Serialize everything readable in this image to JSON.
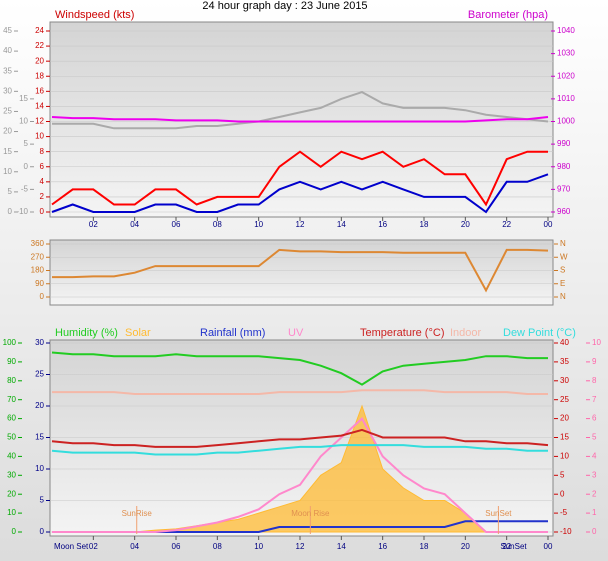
{
  "chart_data": [
    {
      "type": "line",
      "title": "24 hour graph day : 23 June 2015",
      "ylabel": "Windspeed (kts)",
      "y2label": "Barometer (hpa)",
      "x": [
        0,
        1,
        2,
        3,
        4,
        5,
        6,
        7,
        8,
        9,
        10,
        11,
        12,
        13,
        14,
        15,
        16,
        17,
        18,
        19,
        20,
        21,
        22,
        23,
        24
      ],
      "xlim": [
        0,
        24
      ],
      "xticks": [
        {
          "value": 2,
          "label": "02"
        },
        {
          "value": 4,
          "label": "04"
        },
        {
          "value": 6,
          "label": "06"
        },
        {
          "value": 8,
          "label": "08"
        },
        10,
        12,
        14,
        16,
        18,
        20,
        22,
        {
          "value": 24,
          "label": "00"
        }
      ],
      "ylim": [
        0,
        24
      ],
      "yticks": [
        0,
        2,
        4,
        6,
        8,
        10,
        12,
        14,
        16,
        18,
        20,
        22,
        24
      ],
      "y2lim": [
        960,
        1040
      ],
      "y2ticks": [
        960,
        970,
        980,
        990,
        1000,
        1010,
        1020,
        1030,
        1040
      ],
      "y3lim": [
        -10,
        30
      ],
      "y3ticks": [
        -10,
        -5,
        0,
        5,
        10,
        15
      ],
      "y4lim": [
        0,
        45
      ],
      "y4ticks": [
        0,
        5,
        10,
        15,
        20,
        25,
        30,
        35,
        40,
        45
      ],
      "axis_colors": {
        "y": "#cc0000",
        "y2": "#cc00cc",
        "y3": "#999999",
        "y4": "#999999"
      },
      "grid": true,
      "series": [
        {
          "color": "#aaaaaa",
          "axis": "y3",
          "values": [
            9.5,
            9.5,
            9.5,
            8.5,
            8.5,
            8.5,
            8.5,
            9,
            9,
            9.5,
            10,
            11,
            12,
            13,
            15,
            16.5,
            14,
            13,
            13,
            13,
            12.5,
            11.5,
            11,
            10.5,
            10
          ]
        },
        {
          "color": "#ee00ee",
          "axis": "y2",
          "values": [
            1002,
            1001.5,
            1001.5,
            1001,
            1001,
            1001,
            1000.5,
            1000.5,
            1000.5,
            1000,
            1000,
            1000,
            1000,
            1000,
            1000,
            1000,
            1000,
            1000,
            1000,
            1000,
            1000,
            1000.5,
            1001,
            1001,
            1002
          ]
        },
        {
          "color": "#ff0000",
          "axis": "y",
          "values": [
            1,
            3,
            3,
            1,
            1,
            3,
            3,
            1,
            2,
            2,
            2,
            6,
            8,
            6,
            8,
            7,
            8,
            6,
            7,
            5,
            5,
            1,
            7,
            8,
            8
          ]
        },
        {
          "color": "#0000cc",
          "axis": "y",
          "values": [
            0,
            1,
            0,
            0,
            0,
            1,
            1,
            0,
            0,
            1,
            1,
            3,
            4,
            3,
            4,
            3,
            4,
            3,
            2,
            2,
            2,
            0,
            4,
            4,
            5
          ]
        }
      ]
    },
    {
      "type": "line",
      "x": [
        0,
        1,
        2,
        3,
        4,
        5,
        6,
        7,
        8,
        9,
        10,
        11,
        12,
        13,
        14,
        15,
        16,
        17,
        18,
        19,
        20,
        21,
        22,
        23,
        24
      ],
      "xlim": [
        0,
        24
      ],
      "ylim": [
        0,
        360
      ],
      "yticks": [
        0,
        90,
        180,
        270,
        360
      ],
      "y2lim": [
        0,
        360
      ],
      "y2ticks": [
        {
          "value": 0,
          "label": "N"
        },
        {
          "value": 90,
          "label": "E"
        },
        {
          "value": 180,
          "label": "S"
        },
        {
          "value": 270,
          "label": "W"
        },
        {
          "value": 360,
          "label": "N"
        }
      ],
      "axis_colors": {
        "y": "#cc7722",
        "y2": "#cc7722"
      },
      "grid": true,
      "series": [
        {
          "color": "#dd8833",
          "axis": "y",
          "values": [
            135,
            135,
            140,
            140,
            165,
            210,
            210,
            210,
            210,
            210,
            210,
            320,
            310,
            310,
            305,
            305,
            305,
            300,
            300,
            300,
            300,
            45,
            320,
            320,
            315
          ]
        }
      ]
    },
    {
      "type": "line",
      "x": [
        0,
        1,
        2,
        3,
        4,
        5,
        6,
        7,
        8,
        9,
        10,
        11,
        12,
        13,
        14,
        15,
        16,
        17,
        18,
        19,
        20,
        21,
        22,
        23,
        24
      ],
      "xlim": [
        0,
        24
      ],
      "xticks": [
        {
          "value": 2,
          "label": "02"
        },
        {
          "value": 4,
          "label": "04"
        },
        {
          "value": 6,
          "label": "06"
        },
        {
          "value": 8,
          "label": "08"
        },
        10,
        12,
        14,
        16,
        18,
        20,
        22,
        {
          "value": 24,
          "label": "00"
        }
      ],
      "ylim": [
        0,
        30
      ],
      "yticks": [
        0,
        5,
        10,
        15,
        20,
        25,
        30
      ],
      "y2lim": [
        -10,
        40
      ],
      "y2ticks": [
        -10,
        -5,
        0,
        5,
        10,
        15,
        20,
        25,
        30,
        35,
        40
      ],
      "y3lim": [
        0,
        100
      ],
      "y3ticks": [
        0,
        10,
        20,
        30,
        40,
        50,
        60,
        70,
        80,
        90,
        100
      ],
      "y4lim": [
        0,
        10
      ],
      "y4ticks": [
        0,
        1,
        2,
        3,
        4,
        5,
        6,
        7,
        8,
        9,
        10
      ],
      "axis_colors": {
        "y": "#000088",
        "y2": "#cc0000",
        "y3": "#00aa00",
        "y4": "#ff66aa"
      },
      "grid": true,
      "series": [
        {
          "name": "Humidity (%)",
          "color": "#22cc22",
          "axis": "y3",
          "values": [
            95,
            94,
            94,
            93,
            93,
            93,
            94,
            93,
            93,
            93,
            93,
            92,
            91,
            88,
            84,
            78,
            85,
            88,
            89,
            90,
            91,
            93,
            93,
            92,
            92
          ]
        },
        {
          "name": "Solar",
          "color": "#ffbb33",
          "axis": "y",
          "style": "area",
          "values": [
            0,
            0,
            0,
            0,
            0,
            0.3,
            0.5,
            1,
            1.5,
            2,
            3,
            4,
            5,
            9,
            11,
            20,
            10,
            7,
            5,
            5,
            3,
            0,
            0,
            0,
            0
          ]
        },
        {
          "name": "Rainfall (mm)",
          "color": "#2233cc",
          "axis": "y",
          "values": [
            0,
            0,
            0,
            0,
            0,
            0,
            0,
            0,
            0,
            0,
            0,
            0.8,
            0.8,
            0.8,
            0.8,
            0.8,
            0.8,
            0.8,
            0.8,
            0.8,
            1.7,
            1.7,
            1.7,
            1.7,
            1.7
          ]
        },
        {
          "name": "UV",
          "color": "#ff88cc",
          "axis": "y4",
          "values": [
            0,
            0,
            0,
            0,
            0,
            0,
            0.1,
            0.3,
            0.5,
            0.8,
            1.2,
            2,
            2.5,
            4,
            5,
            6,
            4,
            3,
            2.3,
            2,
            1,
            0,
            0,
            0,
            0
          ]
        },
        {
          "name": "Temperature (°C)",
          "color": "#cc2222",
          "axis": "y2",
          "values": [
            14,
            13.5,
            13.5,
            13,
            13,
            12.5,
            12.5,
            12.5,
            13,
            13.5,
            14,
            14.5,
            14.5,
            15,
            15.5,
            17,
            15,
            15,
            15,
            15,
            14,
            14,
            13.5,
            13.5,
            13
          ]
        },
        {
          "name": "Indoor",
          "color": "#f4b8a8",
          "axis": "y2",
          "values": [
            27,
            27,
            27,
            27,
            26.5,
            26.5,
            26.5,
            26.5,
            26.5,
            26.5,
            26.5,
            27,
            27,
            27,
            27,
            27.5,
            27.5,
            27.5,
            27.5,
            27,
            27,
            27,
            27,
            26.5,
            26.5
          ]
        },
        {
          "name": "Dew Point (°C)",
          "color": "#33dddd",
          "axis": "y2",
          "values": [
            11.5,
            11,
            11,
            11,
            11,
            10.5,
            10.5,
            10.5,
            11,
            11,
            11.5,
            12,
            12.5,
            12.5,
            13,
            13,
            13,
            13,
            12.5,
            12.5,
            12.5,
            12,
            12,
            11.5,
            11.5
          ]
        }
      ],
      "annotations": [
        {
          "text": "SunRise",
          "x": 4.1
        },
        {
          "text": "Moon Rise",
          "x": 12.5
        },
        {
          "text": "SunSet",
          "x": 21.6
        }
      ],
      "events": [
        {
          "text": "Moon Set",
          "x": 0
        },
        {
          "text": "SunSet",
          "x": 21.6
        }
      ]
    }
  ]
}
